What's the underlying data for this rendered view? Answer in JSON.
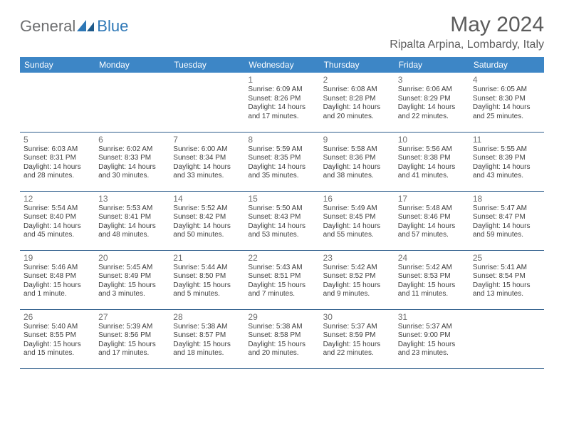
{
  "logo": {
    "general": "General",
    "blue": "Blue"
  },
  "title": "May 2024",
  "location": "Ripalta Arpina, Lombardy, Italy",
  "headers": [
    "Sunday",
    "Monday",
    "Tuesday",
    "Wednesday",
    "Thursday",
    "Friday",
    "Saturday"
  ],
  "colors": {
    "header_bg": "#3d86c6",
    "header_text": "#ffffff",
    "border": "#2f5e8c",
    "title_text": "#5c5c5c",
    "daynum_text": "#707070",
    "info_text": "#3f3f3f",
    "logo_gray": "#6d6e70",
    "logo_blue": "#2d77b6"
  },
  "weeks": [
    [
      null,
      null,
      null,
      {
        "d": "1",
        "sr": "6:09 AM",
        "ss": "8:26 PM",
        "dl": "14 hours and 17 minutes."
      },
      {
        "d": "2",
        "sr": "6:08 AM",
        "ss": "8:28 PM",
        "dl": "14 hours and 20 minutes."
      },
      {
        "d": "3",
        "sr": "6:06 AM",
        "ss": "8:29 PM",
        "dl": "14 hours and 22 minutes."
      },
      {
        "d": "4",
        "sr": "6:05 AM",
        "ss": "8:30 PM",
        "dl": "14 hours and 25 minutes."
      }
    ],
    [
      {
        "d": "5",
        "sr": "6:03 AM",
        "ss": "8:31 PM",
        "dl": "14 hours and 28 minutes."
      },
      {
        "d": "6",
        "sr": "6:02 AM",
        "ss": "8:33 PM",
        "dl": "14 hours and 30 minutes."
      },
      {
        "d": "7",
        "sr": "6:00 AM",
        "ss": "8:34 PM",
        "dl": "14 hours and 33 minutes."
      },
      {
        "d": "8",
        "sr": "5:59 AM",
        "ss": "8:35 PM",
        "dl": "14 hours and 35 minutes."
      },
      {
        "d": "9",
        "sr": "5:58 AM",
        "ss": "8:36 PM",
        "dl": "14 hours and 38 minutes."
      },
      {
        "d": "10",
        "sr": "5:56 AM",
        "ss": "8:38 PM",
        "dl": "14 hours and 41 minutes."
      },
      {
        "d": "11",
        "sr": "5:55 AM",
        "ss": "8:39 PM",
        "dl": "14 hours and 43 minutes."
      }
    ],
    [
      {
        "d": "12",
        "sr": "5:54 AM",
        "ss": "8:40 PM",
        "dl": "14 hours and 45 minutes."
      },
      {
        "d": "13",
        "sr": "5:53 AM",
        "ss": "8:41 PM",
        "dl": "14 hours and 48 minutes."
      },
      {
        "d": "14",
        "sr": "5:52 AM",
        "ss": "8:42 PM",
        "dl": "14 hours and 50 minutes."
      },
      {
        "d": "15",
        "sr": "5:50 AM",
        "ss": "8:43 PM",
        "dl": "14 hours and 53 minutes."
      },
      {
        "d": "16",
        "sr": "5:49 AM",
        "ss": "8:45 PM",
        "dl": "14 hours and 55 minutes."
      },
      {
        "d": "17",
        "sr": "5:48 AM",
        "ss": "8:46 PM",
        "dl": "14 hours and 57 minutes."
      },
      {
        "d": "18",
        "sr": "5:47 AM",
        "ss": "8:47 PM",
        "dl": "14 hours and 59 minutes."
      }
    ],
    [
      {
        "d": "19",
        "sr": "5:46 AM",
        "ss": "8:48 PM",
        "dl": "15 hours and 1 minute."
      },
      {
        "d": "20",
        "sr": "5:45 AM",
        "ss": "8:49 PM",
        "dl": "15 hours and 3 minutes."
      },
      {
        "d": "21",
        "sr": "5:44 AM",
        "ss": "8:50 PM",
        "dl": "15 hours and 5 minutes."
      },
      {
        "d": "22",
        "sr": "5:43 AM",
        "ss": "8:51 PM",
        "dl": "15 hours and 7 minutes."
      },
      {
        "d": "23",
        "sr": "5:42 AM",
        "ss": "8:52 PM",
        "dl": "15 hours and 9 minutes."
      },
      {
        "d": "24",
        "sr": "5:42 AM",
        "ss": "8:53 PM",
        "dl": "15 hours and 11 minutes."
      },
      {
        "d": "25",
        "sr": "5:41 AM",
        "ss": "8:54 PM",
        "dl": "15 hours and 13 minutes."
      }
    ],
    [
      {
        "d": "26",
        "sr": "5:40 AM",
        "ss": "8:55 PM",
        "dl": "15 hours and 15 minutes."
      },
      {
        "d": "27",
        "sr": "5:39 AM",
        "ss": "8:56 PM",
        "dl": "15 hours and 17 minutes."
      },
      {
        "d": "28",
        "sr": "5:38 AM",
        "ss": "8:57 PM",
        "dl": "15 hours and 18 minutes."
      },
      {
        "d": "29",
        "sr": "5:38 AM",
        "ss": "8:58 PM",
        "dl": "15 hours and 20 minutes."
      },
      {
        "d": "30",
        "sr": "5:37 AM",
        "ss": "8:59 PM",
        "dl": "15 hours and 22 minutes."
      },
      {
        "d": "31",
        "sr": "5:37 AM",
        "ss": "9:00 PM",
        "dl": "15 hours and 23 minutes."
      },
      null
    ]
  ],
  "labels": {
    "sunrise": "Sunrise: ",
    "sunset": "Sunset: ",
    "daylight": "Daylight: "
  }
}
